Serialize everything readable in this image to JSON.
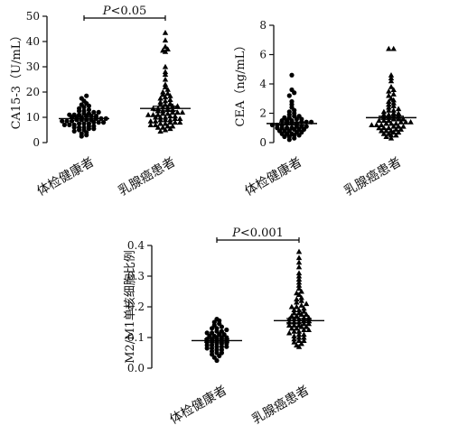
{
  "chart_data": [
    {
      "id": "ca153",
      "type": "scatter",
      "ylabel": "CA15-3（U/mL）",
      "ylim": [
        0,
        50
      ],
      "yticks": [
        0,
        10,
        20,
        30,
        40,
        50
      ],
      "categories": [
        "体检健康者",
        "乳腺癌患者"
      ],
      "significance": {
        "p_italic": "P",
        "text": "<0.05"
      },
      "series": [
        {
          "marker": "circle",
          "mean": 9.5,
          "sem": 0.6,
          "values": [
            2.5,
            3.0,
            3.5,
            4.0,
            4.5,
            5.0,
            5.0,
            5.5,
            5.5,
            6.0,
            6.0,
            6.0,
            6.5,
            6.5,
            7.0,
            7.0,
            7.0,
            7.5,
            7.5,
            7.5,
            8.0,
            8.0,
            8.0,
            8.5,
            8.5,
            8.5,
            9.0,
            9.0,
            9.0,
            9.0,
            9.5,
            9.5,
            9.5,
            10.0,
            10.0,
            10.0,
            10.5,
            10.5,
            10.5,
            11.0,
            11.0,
            11.0,
            11.5,
            11.5,
            12.0,
            12.0,
            12.5,
            12.5,
            13.0,
            13.5,
            14.0,
            14.5,
            15.0,
            15.5,
            16.5,
            17.5,
            18.5
          ]
        },
        {
          "marker": "triangle",
          "mean": 13.5,
          "sem": 0.9,
          "values": [
            4.5,
            5.0,
            5.5,
            6.0,
            6.0,
            6.5,
            6.5,
            7.0,
            7.0,
            7.5,
            7.5,
            8.0,
            8.0,
            8.0,
            8.5,
            8.5,
            9.0,
            9.0,
            9.0,
            9.5,
            9.5,
            10.0,
            10.0,
            10.0,
            10.5,
            10.5,
            11.0,
            11.0,
            11.0,
            11.5,
            11.5,
            12.0,
            12.0,
            12.0,
            12.5,
            12.5,
            13.0,
            13.0,
            13.5,
            13.5,
            14.0,
            14.0,
            14.5,
            14.5,
            15.0,
            15.0,
            15.5,
            16.0,
            16.5,
            17.0,
            17.5,
            18.0,
            18.5,
            19.0,
            19.5,
            20.0,
            21.0,
            22.0,
            23.0,
            25.0,
            27.0,
            28.0,
            30.0,
            36.0,
            36.5,
            37.0,
            38.0,
            40.5,
            43.5
          ]
        }
      ]
    },
    {
      "id": "cea",
      "type": "scatter",
      "ylabel": "CEA（ng/mL）",
      "ylim": [
        0,
        8
      ],
      "yticks": [
        0,
        2,
        4,
        6,
        8
      ],
      "ytick_labels": [
        "0",
        "2",
        "4",
        "6",
        "8"
      ],
      "categories": [
        "体检健康者",
        "乳腺癌患者"
      ],
      "significance": null,
      "series": [
        {
          "marker": "circle",
          "mean": 1.3,
          "sem": 0.1,
          "values": [
            0.2,
            0.3,
            0.4,
            0.4,
            0.5,
            0.5,
            0.6,
            0.6,
            0.6,
            0.7,
            0.7,
            0.8,
            0.8,
            0.8,
            0.9,
            0.9,
            0.9,
            1.0,
            1.0,
            1.0,
            1.0,
            1.1,
            1.1,
            1.1,
            1.2,
            1.2,
            1.2,
            1.3,
            1.3,
            1.3,
            1.4,
            1.4,
            1.4,
            1.5,
            1.5,
            1.5,
            1.6,
            1.6,
            1.7,
            1.7,
            1.8,
            1.8,
            1.9,
            2.0,
            2.1,
            2.2,
            2.4,
            2.6,
            2.8,
            3.2,
            3.4,
            3.6,
            4.6
          ]
        },
        {
          "marker": "triangle",
          "mean": 1.7,
          "sem": 0.1,
          "values": [
            0.3,
            0.4,
            0.5,
            0.5,
            0.6,
            0.6,
            0.7,
            0.7,
            0.8,
            0.8,
            0.8,
            0.9,
            0.9,
            1.0,
            1.0,
            1.0,
            1.1,
            1.1,
            1.1,
            1.2,
            1.2,
            1.2,
            1.3,
            1.3,
            1.3,
            1.4,
            1.4,
            1.4,
            1.5,
            1.5,
            1.5,
            1.6,
            1.6,
            1.6,
            1.7,
            1.7,
            1.8,
            1.8,
            1.9,
            1.9,
            2.0,
            2.0,
            2.1,
            2.2,
            2.2,
            2.3,
            2.4,
            2.5,
            2.6,
            2.7,
            2.8,
            2.9,
            3.0,
            3.2,
            3.3,
            3.5,
            3.6,
            3.8,
            4.2,
            4.4,
            4.6,
            6.4,
            6.4
          ]
        }
      ]
    },
    {
      "id": "m2m1",
      "type": "scatter",
      "ylabel": "M2/M1单核细胞比例",
      "ylim": [
        0,
        0.4
      ],
      "yticks": [
        0,
        0.1,
        0.2,
        0.3,
        0.4
      ],
      "ytick_labels": [
        "0.0",
        "0.1",
        "0.2",
        "0.3",
        "0.4"
      ],
      "categories": [
        "体检健康者",
        "乳腺癌患者"
      ],
      "significance": {
        "p_italic": "P",
        "text": "<0.001"
      },
      "series": [
        {
          "marker": "circle",
          "mean": 0.09,
          "sem": 0.005,
          "values": [
            0.025,
            0.035,
            0.04,
            0.045,
            0.05,
            0.05,
            0.055,
            0.06,
            0.06,
            0.065,
            0.065,
            0.07,
            0.07,
            0.07,
            0.075,
            0.075,
            0.08,
            0.08,
            0.08,
            0.085,
            0.085,
            0.09,
            0.09,
            0.09,
            0.095,
            0.095,
            0.1,
            0.1,
            0.1,
            0.105,
            0.105,
            0.11,
            0.11,
            0.115,
            0.115,
            0.12,
            0.12,
            0.125,
            0.13,
            0.13,
            0.135,
            0.14,
            0.145,
            0.15,
            0.155,
            0.16
          ]
        },
        {
          "marker": "triangle",
          "mean": 0.155,
          "sem": 0.007,
          "values": [
            0.07,
            0.075,
            0.08,
            0.085,
            0.09,
            0.09,
            0.095,
            0.1,
            0.1,
            0.105,
            0.11,
            0.11,
            0.115,
            0.12,
            0.12,
            0.125,
            0.125,
            0.13,
            0.13,
            0.135,
            0.135,
            0.14,
            0.14,
            0.14,
            0.145,
            0.145,
            0.15,
            0.15,
            0.15,
            0.155,
            0.155,
            0.16,
            0.16,
            0.16,
            0.165,
            0.165,
            0.17,
            0.17,
            0.175,
            0.175,
            0.18,
            0.18,
            0.185,
            0.19,
            0.19,
            0.195,
            0.2,
            0.2,
            0.205,
            0.21,
            0.215,
            0.22,
            0.225,
            0.23,
            0.24,
            0.245,
            0.25,
            0.26,
            0.27,
            0.28,
            0.29,
            0.3,
            0.31,
            0.33,
            0.345,
            0.36,
            0.38
          ]
        }
      ]
    }
  ]
}
